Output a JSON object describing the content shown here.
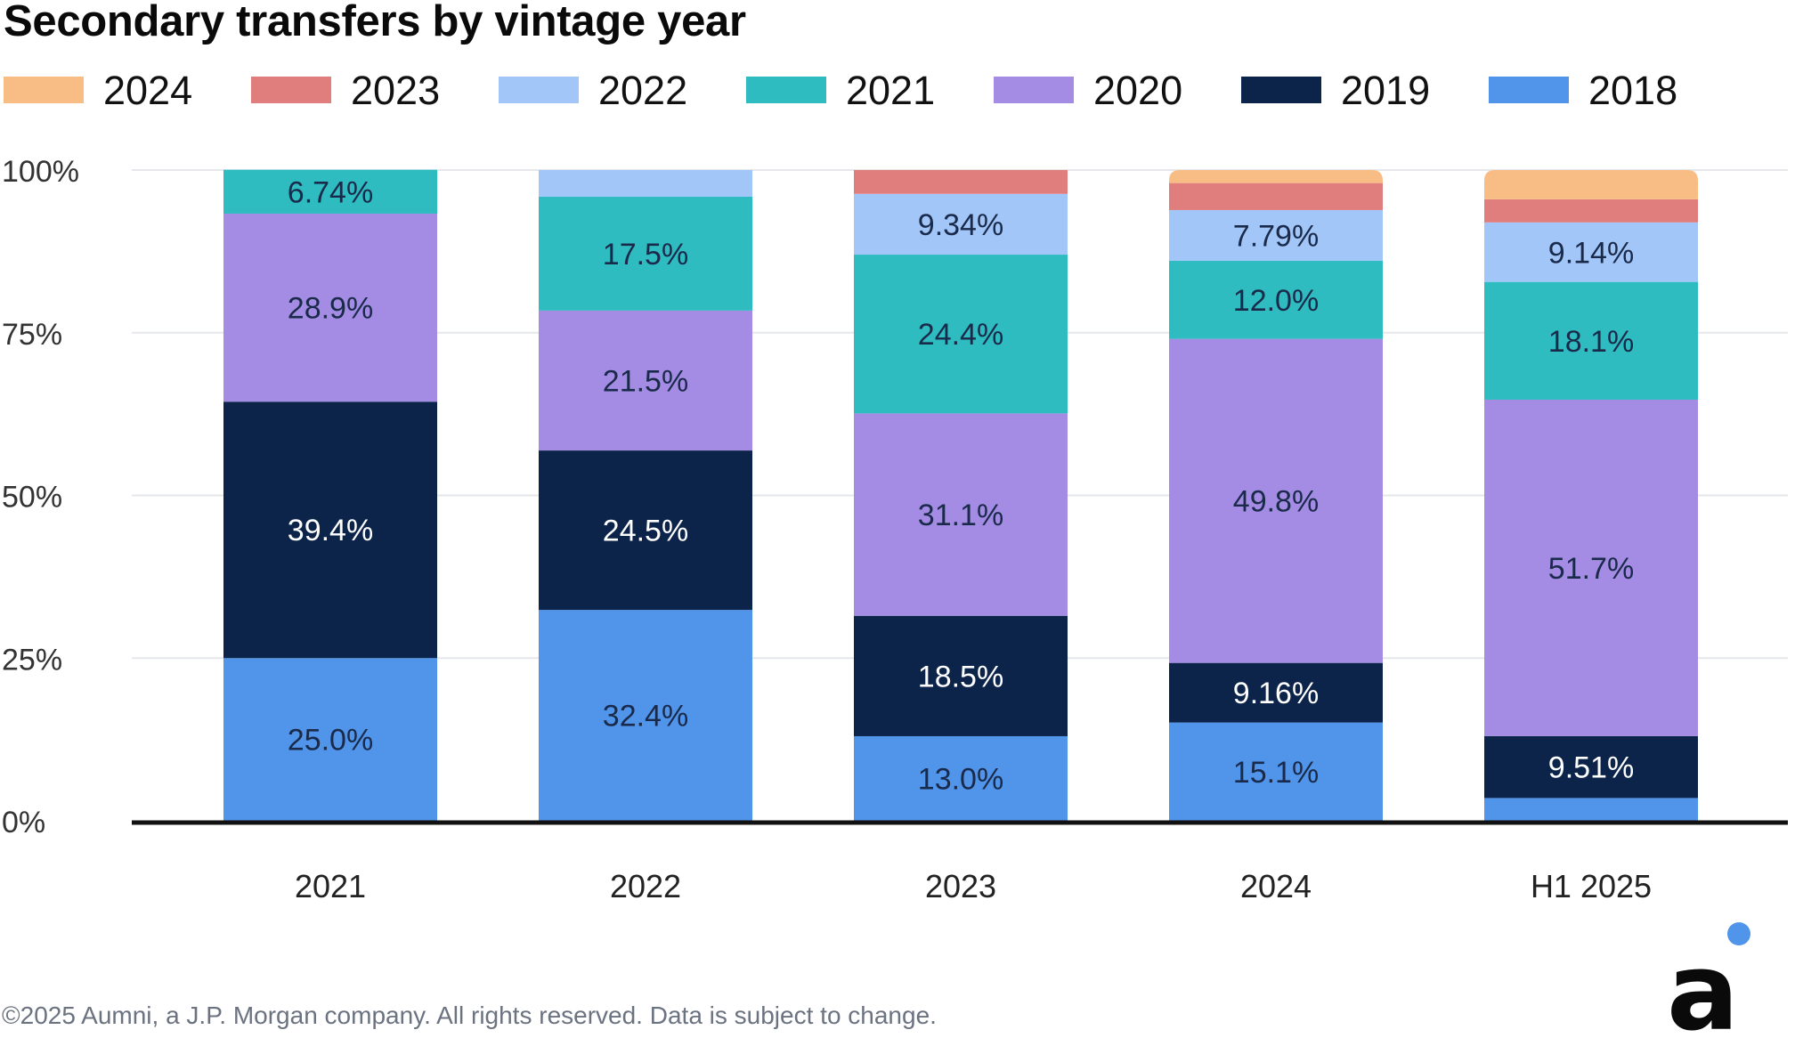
{
  "chart_data": {
    "type": "bar",
    "stacked": true,
    "title": "Secondary transfers by vintage year",
    "categories": [
      "2021",
      "2022",
      "2023",
      "2024",
      "H1 2025"
    ],
    "ylim": [
      0,
      100
    ],
    "yticks": [
      "0%",
      "25%",
      "50%",
      "75%",
      "100%"
    ],
    "ytick_values": [
      0,
      25,
      50,
      75,
      100
    ],
    "grid": true,
    "legend_position": "top",
    "legend_order": [
      "2024",
      "2023",
      "2022",
      "2021",
      "2020",
      "2019",
      "2018"
    ],
    "series": [
      {
        "name": "2018",
        "color": "#5195ea",
        "values": [
          25.0,
          32.4,
          13.0,
          15.1,
          3.5
        ],
        "labels": [
          "25.0%",
          "32.4%",
          "13.0%",
          "15.1%",
          ""
        ]
      },
      {
        "name": "2019",
        "color": "#0c244a",
        "values": [
          39.4,
          24.5,
          18.5,
          9.16,
          9.51
        ],
        "labels": [
          "39.4%",
          "24.5%",
          "18.5%",
          "9.16%",
          "9.51%"
        ]
      },
      {
        "name": "2020",
        "color": "#a48ce4",
        "values": [
          28.9,
          21.5,
          31.1,
          49.8,
          51.7
        ],
        "labels": [
          "28.9%",
          "21.5%",
          "31.1%",
          "49.8%",
          "51.7%"
        ]
      },
      {
        "name": "2021",
        "color": "#2fbcc1",
        "values": [
          6.74,
          17.5,
          24.4,
          12.0,
          18.1
        ],
        "labels": [
          "6.74%",
          "17.5%",
          "24.4%",
          "12.0%",
          "18.1%"
        ]
      },
      {
        "name": "2022",
        "color": "#a2c6f8",
        "values": [
          0,
          4.1,
          9.34,
          7.79,
          9.14
        ],
        "labels": [
          "",
          "",
          "9.34%",
          "7.79%",
          "9.14%"
        ]
      },
      {
        "name": "2023",
        "color": "#e07d7d",
        "values": [
          0,
          0,
          3.66,
          4.15,
          3.55
        ],
        "labels": [
          "",
          "",
          "",
          "",
          ""
        ]
      },
      {
        "name": "2024",
        "color": "#f8bd84",
        "values": [
          0,
          0,
          0,
          2.0,
          4.5
        ],
        "labels": [
          "",
          "",
          "",
          "",
          ""
        ]
      }
    ]
  },
  "footer": "©2025 Aumni, a J.P. Morgan company. All rights reserved. Data is subject to change.",
  "logo": {
    "letter": "a",
    "icon": "aumni-logo-icon",
    "dot_color": "#5195ea"
  },
  "colors": {
    "grid": "#e5e7eb",
    "axis": "#111111",
    "light_label": "#ffffff",
    "dark_label": "#1a2a4a"
  }
}
